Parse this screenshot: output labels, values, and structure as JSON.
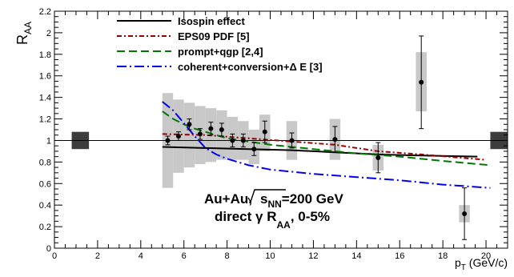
{
  "chart_data": {
    "type": "scatter",
    "x_range": [
      0,
      21
    ],
    "y_range": [
      0,
      2.2
    ],
    "xticks": [
      0,
      2,
      4,
      6,
      8,
      10,
      12,
      14,
      16,
      18,
      20
    ],
    "yticks": [
      0,
      0.2,
      0.4,
      0.6,
      0.8,
      1.0,
      1.2,
      1.4,
      1.6,
      1.8,
      2.0,
      2.2
    ],
    "ytick_labels": [
      "0",
      "0.2",
      "0.4",
      "0.6",
      "0.8",
      "1",
      "1.2",
      "1.4",
      "1.6",
      "1.8",
      "2",
      "2.2"
    ],
    "xtick_labels": [
      "0",
      "2",
      "4",
      "6",
      "8",
      "10",
      "12",
      "14",
      "16",
      "18",
      "20"
    ],
    "ylabel": {
      "main": "R",
      "sub": "AA"
    },
    "xlabel": {
      "main": "p",
      "sub": "T",
      "unit": " (GeV/c)"
    },
    "legend": [
      {
        "label": "Isospin effect",
        "color": "#000000",
        "dash": ""
      },
      {
        "label": "EPS09 PDF [5]",
        "color": "#990000",
        "dash": "6,3,2,3"
      },
      {
        "label": "prompt+qgp [2,4]",
        "color": "#007700",
        "dash": "10,5"
      },
      {
        "label": "coherent+conversion+Δ E [3]",
        "color": "#0000ee",
        "dash": "12,4,2,4"
      }
    ],
    "annotation": {
      "line1_a": "Au+Au,",
      "line1_sqrt": "s",
      "line1_sqrt_sub": "NN",
      "line1_b": "=200 GeV",
      "line2_a": "direct γ R",
      "line2_sub": "AA",
      "line2_b": ", 0-5%"
    },
    "data_points": [
      {
        "x": 5.25,
        "y": 1.0,
        "yerr": 0.04
      },
      {
        "x": 5.75,
        "y": 1.04,
        "yerr": 0.04
      },
      {
        "x": 6.25,
        "y": 1.15,
        "yerr": 0.05
      },
      {
        "x": 6.75,
        "y": 1.06,
        "yerr": 0.05
      },
      {
        "x": 7.25,
        "y": 1.11,
        "yerr": 0.06
      },
      {
        "x": 7.75,
        "y": 1.1,
        "yerr": 0.06
      },
      {
        "x": 8.25,
        "y": 1.0,
        "yerr": 0.06
      },
      {
        "x": 8.75,
        "y": 1.0,
        "yerr": 0.06
      },
      {
        "x": 9.25,
        "y": 0.92,
        "yerr": 0.06
      },
      {
        "x": 9.75,
        "y": 1.08,
        "yerr": 0.1
      },
      {
        "x": 11.0,
        "y": 1.0,
        "yerr": 0.07
      },
      {
        "x": 13.0,
        "y": 1.01,
        "yerr": 0.12
      },
      {
        "x": 15.0,
        "y": 0.84,
        "yerr": 0.14
      },
      {
        "x": 17.0,
        "y": 1.54,
        "yerr": 0.43
      },
      {
        "x": 19.0,
        "y": 0.32,
        "yerr": 0.24
      }
    ],
    "sys_boxes": [
      {
        "x": 5.25,
        "ylo": 0.56,
        "yhi": 1.44,
        "halfwidth": 0.25
      },
      {
        "x": 5.75,
        "ylo": 0.7,
        "yhi": 1.38,
        "halfwidth": 0.25
      },
      {
        "x": 6.25,
        "ylo": 0.75,
        "yhi": 1.35,
        "halfwidth": 0.25
      },
      {
        "x": 6.75,
        "ylo": 0.78,
        "yhi": 1.32,
        "halfwidth": 0.25
      },
      {
        "x": 7.25,
        "ylo": 0.8,
        "yhi": 1.3,
        "halfwidth": 0.25
      },
      {
        "x": 7.75,
        "ylo": 0.82,
        "yhi": 1.28,
        "halfwidth": 0.25
      },
      {
        "x": 8.25,
        "ylo": 0.82,
        "yhi": 1.22,
        "halfwidth": 0.25
      },
      {
        "x": 8.75,
        "ylo": 0.82,
        "yhi": 1.18,
        "halfwidth": 0.25
      },
      {
        "x": 9.25,
        "ylo": 0.78,
        "yhi": 1.1,
        "halfwidth": 0.25
      },
      {
        "x": 9.75,
        "ylo": 0.9,
        "yhi": 1.24,
        "halfwidth": 0.25
      },
      {
        "x": 11.0,
        "ylo": 0.82,
        "yhi": 1.18,
        "halfwidth": 0.25
      },
      {
        "x": 13.0,
        "ylo": 0.82,
        "yhi": 1.2,
        "halfwidth": 0.25
      },
      {
        "x": 15.0,
        "ylo": 0.72,
        "yhi": 0.96,
        "halfwidth": 0.25
      },
      {
        "x": 17.0,
        "ylo": 1.27,
        "yhi": 1.82,
        "halfwidth": 0.25
      },
      {
        "x": 19.0,
        "ylo": 0.24,
        "yhi": 0.4,
        "halfwidth": 0.25
      }
    ],
    "norm_boxes": [
      {
        "x": 1.2,
        "ylo": 0.92,
        "yhi": 1.08,
        "halfwidth": 0.4
      },
      {
        "x": 20.6,
        "ylo": 0.92,
        "yhi": 1.08,
        "halfwidth": 0.4
      }
    ],
    "reference_line_y": 1.0,
    "curves": [
      {
        "name": "Isospin effect",
        "color": "#000000",
        "dash": "",
        "x": [
          5,
          7,
          9,
          11,
          13,
          15,
          17,
          19.6
        ],
        "y": [
          0.94,
          0.93,
          0.92,
          0.91,
          0.89,
          0.87,
          0.86,
          0.85
        ]
      },
      {
        "name": "EPS09 PDF [5]",
        "color": "#990000",
        "dash": "6,3,2,3",
        "x": [
          5,
          7,
          9,
          11,
          13,
          15,
          17,
          20
        ],
        "y": [
          1.06,
          1.05,
          1.02,
          0.99,
          0.96,
          0.9,
          0.87,
          0.82
        ]
      },
      {
        "name": "prompt+qgp [2,4]",
        "color": "#007700",
        "dash": "10,5",
        "x": [
          5,
          5.5,
          6,
          6.5,
          7,
          7.5,
          8,
          9,
          10,
          12,
          14,
          16,
          18,
          20.2
        ],
        "y": [
          1.27,
          1.2,
          1.15,
          1.11,
          1.08,
          1.05,
          1.02,
          0.99,
          0.96,
          0.92,
          0.88,
          0.85,
          0.81,
          0.77
        ]
      },
      {
        "name": "coherent+conversion+Δ E [3]",
        "color": "#0000ee",
        "dash": "12,4,2,4",
        "x": [
          5,
          5.5,
          6,
          6.5,
          7,
          7.5,
          8,
          9,
          10,
          12,
          14,
          16,
          18,
          20.2
        ],
        "y": [
          1.36,
          1.28,
          1.16,
          1.04,
          0.93,
          0.87,
          0.83,
          0.77,
          0.73,
          0.69,
          0.66,
          0.63,
          0.59,
          0.56
        ]
      }
    ]
  }
}
